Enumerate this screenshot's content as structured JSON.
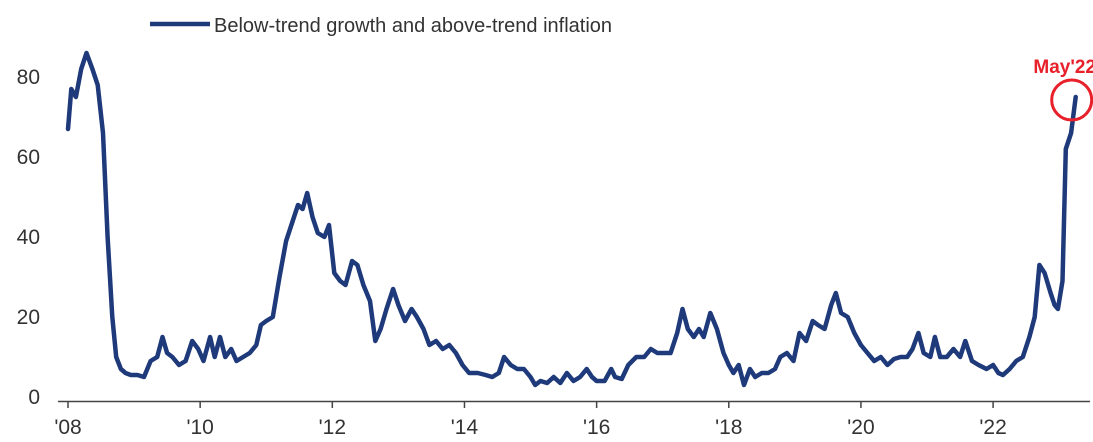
{
  "chart_data": {
    "type": "line",
    "title": "",
    "xlabel": "",
    "ylabel": "",
    "xlim": [
      2008.0,
      2023.3
    ],
    "ylim": [
      0,
      88
    ],
    "y_ticks": [
      {
        "value": 0,
        "label": "0"
      },
      {
        "value": 20,
        "label": "20"
      },
      {
        "value": 40,
        "label": "40"
      },
      {
        "value": 60,
        "label": "60"
      },
      {
        "value": 80,
        "label": "80"
      }
    ],
    "x_ticks": [
      {
        "value": 2008,
        "label": "'08"
      },
      {
        "value": 2010,
        "label": "'10"
      },
      {
        "value": 2012,
        "label": "'12"
      },
      {
        "value": 2014,
        "label": "'14"
      },
      {
        "value": 2016,
        "label": "'16"
      },
      {
        "value": 2018,
        "label": "'18"
      },
      {
        "value": 2020,
        "label": "'20"
      },
      {
        "value": 2022,
        "label": "'22"
      }
    ],
    "grid": false,
    "legend": {
      "position": "top-left",
      "entries": [
        "Below-trend growth and above-trend inflation"
      ]
    },
    "series": [
      {
        "name": "Below-trend growth and above-trend inflation",
        "color": "#1f3a7a",
        "points": [
          [
            2008.0,
            67
          ],
          [
            2008.05,
            77
          ],
          [
            2008.12,
            75
          ],
          [
            2008.2,
            82
          ],
          [
            2008.28,
            86
          ],
          [
            2008.37,
            82
          ],
          [
            2008.45,
            78
          ],
          [
            2008.53,
            66
          ],
          [
            2008.6,
            40
          ],
          [
            2008.67,
            20
          ],
          [
            2008.73,
            10
          ],
          [
            2008.8,
            7
          ],
          [
            2008.87,
            6
          ],
          [
            2008.95,
            5.5
          ],
          [
            2009.05,
            5.5
          ],
          [
            2009.15,
            5
          ],
          [
            2009.25,
            9
          ],
          [
            2009.35,
            10
          ],
          [
            2009.43,
            15
          ],
          [
            2009.5,
            11
          ],
          [
            2009.58,
            10
          ],
          [
            2009.68,
            8
          ],
          [
            2009.78,
            9
          ],
          [
            2009.88,
            14
          ],
          [
            2009.97,
            12
          ],
          [
            2010.05,
            9
          ],
          [
            2010.15,
            15
          ],
          [
            2010.22,
            10
          ],
          [
            2010.3,
            15
          ],
          [
            2010.38,
            10
          ],
          [
            2010.47,
            12
          ],
          [
            2010.55,
            9
          ],
          [
            2010.65,
            10
          ],
          [
            2010.75,
            11
          ],
          [
            2010.85,
            13
          ],
          [
            2010.92,
            18
          ],
          [
            2011.0,
            19
          ],
          [
            2011.1,
            20
          ],
          [
            2011.2,
            30
          ],
          [
            2011.3,
            39
          ],
          [
            2011.4,
            44
          ],
          [
            2011.48,
            48
          ],
          [
            2011.55,
            47
          ],
          [
            2011.62,
            51
          ],
          [
            2011.7,
            45
          ],
          [
            2011.78,
            41
          ],
          [
            2011.88,
            40
          ],
          [
            2011.95,
            43
          ],
          [
            2012.03,
            31
          ],
          [
            2012.12,
            29
          ],
          [
            2012.2,
            28
          ],
          [
            2012.3,
            34
          ],
          [
            2012.38,
            33
          ],
          [
            2012.47,
            28
          ],
          [
            2012.57,
            24
          ],
          [
            2012.65,
            14
          ],
          [
            2012.73,
            17
          ],
          [
            2012.82,
            22
          ],
          [
            2012.92,
            27
          ],
          [
            2013.0,
            23
          ],
          [
            2013.1,
            19
          ],
          [
            2013.2,
            22
          ],
          [
            2013.28,
            20
          ],
          [
            2013.38,
            17
          ],
          [
            2013.47,
            13
          ],
          [
            2013.57,
            14
          ],
          [
            2013.67,
            12
          ],
          [
            2013.77,
            13
          ],
          [
            2013.87,
            11
          ],
          [
            2013.97,
            8
          ],
          [
            2014.07,
            6
          ],
          [
            2014.2,
            6
          ],
          [
            2014.32,
            5.5
          ],
          [
            2014.42,
            5
          ],
          [
            2014.52,
            6
          ],
          [
            2014.6,
            10
          ],
          [
            2014.7,
            8
          ],
          [
            2014.8,
            7
          ],
          [
            2014.9,
            7
          ],
          [
            2015.0,
            5
          ],
          [
            2015.07,
            3
          ],
          [
            2015.15,
            4
          ],
          [
            2015.25,
            3.5
          ],
          [
            2015.35,
            5
          ],
          [
            2015.45,
            3.5
          ],
          [
            2015.55,
            6
          ],
          [
            2015.65,
            4
          ],
          [
            2015.75,
            5
          ],
          [
            2015.85,
            7
          ],
          [
            2015.93,
            5
          ],
          [
            2016.0,
            4
          ],
          [
            2016.12,
            4
          ],
          [
            2016.22,
            7
          ],
          [
            2016.28,
            5
          ],
          [
            2016.38,
            4.5
          ],
          [
            2016.48,
            8
          ],
          [
            2016.6,
            10
          ],
          [
            2016.72,
            10
          ],
          [
            2016.82,
            12
          ],
          [
            2016.92,
            11
          ],
          [
            2017.02,
            11
          ],
          [
            2017.12,
            11
          ],
          [
            2017.22,
            16
          ],
          [
            2017.3,
            22
          ],
          [
            2017.38,
            17
          ],
          [
            2017.47,
            15
          ],
          [
            2017.55,
            17
          ],
          [
            2017.62,
            15
          ],
          [
            2017.72,
            21
          ],
          [
            2017.82,
            17
          ],
          [
            2017.92,
            11
          ],
          [
            2018.0,
            8
          ],
          [
            2018.07,
            6
          ],
          [
            2018.15,
            8
          ],
          [
            2018.23,
            3
          ],
          [
            2018.32,
            7
          ],
          [
            2018.4,
            5
          ],
          [
            2018.5,
            6
          ],
          [
            2018.6,
            6
          ],
          [
            2018.7,
            7
          ],
          [
            2018.78,
            10
          ],
          [
            2018.88,
            11
          ],
          [
            2018.98,
            9
          ],
          [
            2019.07,
            16
          ],
          [
            2019.17,
            14
          ],
          [
            2019.27,
            19
          ],
          [
            2019.35,
            18
          ],
          [
            2019.45,
            17
          ],
          [
            2019.55,
            23
          ],
          [
            2019.62,
            26
          ],
          [
            2019.7,
            21
          ],
          [
            2019.8,
            20
          ],
          [
            2019.9,
            16
          ],
          [
            2020.0,
            13
          ],
          [
            2020.1,
            11
          ],
          [
            2020.2,
            9
          ],
          [
            2020.3,
            10
          ],
          [
            2020.4,
            8
          ],
          [
            2020.5,
            9.5
          ],
          [
            2020.6,
            10
          ],
          [
            2020.7,
            10
          ],
          [
            2020.78,
            12
          ],
          [
            2020.87,
            16
          ],
          [
            2020.95,
            11
          ],
          [
            2021.05,
            10
          ],
          [
            2021.12,
            15
          ],
          [
            2021.2,
            10
          ],
          [
            2021.3,
            10
          ],
          [
            2021.4,
            12
          ],
          [
            2021.5,
            10
          ],
          [
            2021.58,
            14
          ],
          [
            2021.68,
            9
          ],
          [
            2021.78,
            8
          ],
          [
            2021.9,
            7
          ],
          [
            2022.0,
            8
          ],
          [
            2022.08,
            6
          ],
          [
            2022.15,
            5.5
          ],
          [
            2022.25,
            7
          ],
          [
            2022.35,
            9
          ],
          [
            2022.45,
            10
          ],
          [
            2022.55,
            15
          ],
          [
            2022.63,
            20
          ],
          [
            2022.7,
            33
          ],
          [
            2022.78,
            31
          ],
          [
            2022.87,
            26
          ],
          [
            2022.93,
            23
          ],
          [
            2022.98,
            22
          ],
          [
            2023.05,
            29
          ],
          [
            2023.1,
            62
          ],
          [
            2023.18,
            66
          ],
          [
            2023.25,
            75
          ]
        ]
      }
    ],
    "annotation": {
      "text": "May'22",
      "x": 2023.25,
      "y": 75,
      "color": "#e8202a"
    }
  }
}
